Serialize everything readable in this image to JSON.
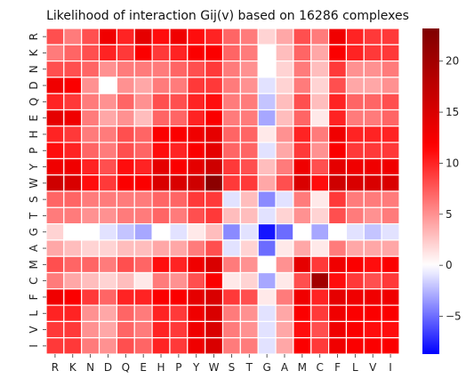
{
  "chart_data": {
    "type": "heatmap",
    "title": "Likelihood of interaction Gij(v) based on 16286 complexes",
    "xlabel": "",
    "ylabel": "",
    "x_labels": [
      "R",
      "K",
      "N",
      "D",
      "Q",
      "E",
      "H",
      "P",
      "Y",
      "W",
      "S",
      "T",
      "G",
      "A",
      "M",
      "C",
      "F",
      "L",
      "V",
      "I"
    ],
    "y_labels": [
      "R",
      "K",
      "N",
      "D",
      "Q",
      "E",
      "H",
      "P",
      "Y",
      "W",
      "S",
      "T",
      "G",
      "A",
      "M",
      "C",
      "F",
      "L",
      "V",
      "I"
    ],
    "values": [
      [
        8,
        6,
        8,
        13,
        10,
        14,
        11,
        13,
        11,
        10,
        7,
        6,
        2,
        4,
        8,
        6,
        13,
        10,
        9,
        9
      ],
      [
        6,
        7,
        8,
        10,
        9,
        12,
        9,
        10,
        12,
        12,
        7,
        6,
        0,
        3,
        7,
        4,
        12,
        10,
        9,
        9
      ],
      [
        8,
        8,
        7,
        5,
        6,
        6,
        6,
        7,
        8,
        9,
        6,
        5,
        0,
        2,
        6,
        3,
        9,
        5,
        5,
        6
      ],
      [
        13,
        12,
        5,
        0,
        5,
        4,
        6,
        6,
        9,
        9,
        6,
        5,
        -1,
        2,
        6,
        2,
        8,
        4,
        4,
        5
      ],
      [
        10,
        9,
        6,
        5,
        7,
        5,
        8,
        8,
        10,
        11,
        6,
        6,
        -2,
        3,
        8,
        3,
        10,
        7,
        7,
        8
      ],
      [
        14,
        13,
        6,
        4,
        5,
        3,
        7,
        7,
        10,
        12,
        6,
        6,
        -3,
        3,
        7,
        1,
        10,
        6,
        6,
        7
      ],
      [
        10,
        9,
        6,
        6,
        8,
        7,
        12,
        12,
        13,
        14,
        7,
        7,
        1,
        5,
        10,
        6,
        13,
        10,
        10,
        10
      ],
      [
        11,
        10,
        7,
        6,
        8,
        7,
        11,
        10,
        12,
        14,
        7,
        7,
        -1,
        4,
        9,
        5,
        12,
        9,
        9,
        9
      ],
      [
        13,
        13,
        10,
        8,
        11,
        10,
        14,
        12,
        14,
        16,
        9,
        8,
        3,
        6,
        13,
        8,
        14,
        13,
        13,
        13
      ],
      [
        16,
        15,
        11,
        9,
        12,
        12,
        15,
        15,
        16,
        22,
        9,
        9,
        4,
        8,
        15,
        11,
        16,
        15,
        15,
        15
      ],
      [
        7,
        7,
        6,
        6,
        6,
        6,
        7,
        7,
        9,
        9,
        -1,
        3,
        -4,
        -1,
        6,
        1,
        9,
        6,
        6,
        6
      ],
      [
        6,
        6,
        5,
        5,
        6,
        6,
        7,
        6,
        8,
        9,
        3,
        3,
        -1,
        2,
        5,
        2,
        8,
        6,
        5,
        6
      ],
      [
        2,
        0,
        0,
        -1,
        -2,
        -3,
        0,
        -1,
        1,
        3,
        -4,
        -1,
        -8,
        -5,
        0,
        -3,
        0,
        -1,
        -2,
        -1
      ],
      [
        4,
        3,
        2,
        2,
        3,
        3,
        4,
        4,
        6,
        8,
        -1,
        2,
        -5,
        1,
        4,
        1,
        6,
        4,
        4,
        4
      ],
      [
        8,
        7,
        7,
        6,
        8,
        7,
        11,
        10,
        13,
        15,
        6,
        5,
        0,
        5,
        14,
        9,
        13,
        12,
        11,
        12
      ],
      [
        6,
        4,
        3,
        2,
        3,
        1,
        6,
        5,
        8,
        12,
        1,
        2,
        -3,
        1,
        8,
        20,
        11,
        9,
        8,
        9
      ],
      [
        13,
        12,
        9,
        7,
        10,
        10,
        12,
        12,
        14,
        15,
        9,
        8,
        1,
        6,
        13,
        10,
        14,
        13,
        13,
        13
      ],
      [
        10,
        10,
        5,
        4,
        7,
        6,
        10,
        9,
        13,
        15,
        6,
        5,
        -1,
        4,
        12,
        9,
        13,
        12,
        12,
        12
      ],
      [
        9,
        9,
        5,
        4,
        7,
        6,
        10,
        9,
        13,
        15,
        6,
        5,
        -1,
        4,
        11,
        8,
        13,
        12,
        11,
        11
      ],
      [
        9,
        9,
        6,
        5,
        8,
        7,
        10,
        9,
        13,
        15,
        6,
        6,
        -1,
        4,
        12,
        9,
        13,
        12,
        12,
        12
      ]
    ],
    "colormap": "bwr",
    "colorbar": {
      "min": -8.7,
      "max": 23.2,
      "ticks": [
        -5,
        0,
        5,
        10,
        15,
        20
      ],
      "tick_labels": [
        "−5",
        "0",
        "5",
        "10",
        "15",
        "20"
      ]
    },
    "colors": {
      "low": "#0000ff",
      "mid": "#ffffff",
      "high": "#ff0000",
      "top": "#7f0000",
      "grid": "#ffffff"
    }
  }
}
